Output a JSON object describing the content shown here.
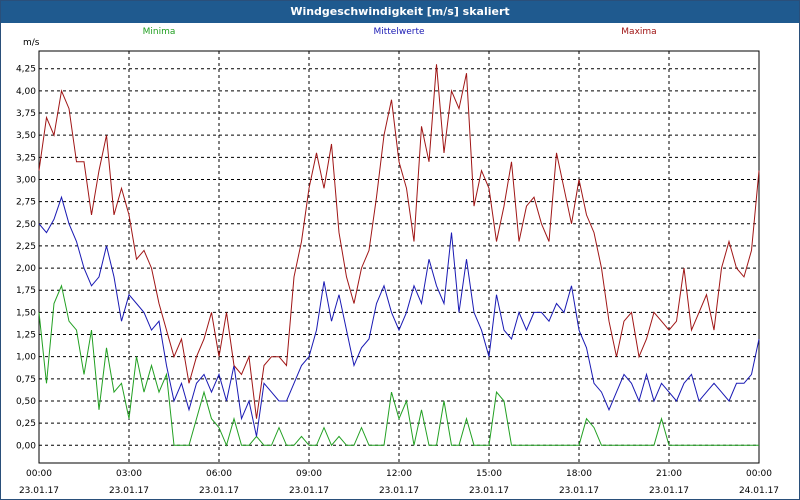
{
  "window": {
    "title": "Windgeschwindigkeit [m/s] skaliert"
  },
  "chart_data": {
    "type": "line",
    "title": "Windgeschwindigkeit [m/s] skaliert",
    "ylabel": "m/s",
    "xlabel": "",
    "ylim": [
      -0.2,
      4.45
    ],
    "xlim": [
      0,
      24
    ],
    "yticks": [
      0,
      0.25,
      0.5,
      0.75,
      1.0,
      1.25,
      1.5,
      1.75,
      2.0,
      2.25,
      2.5,
      2.75,
      3.0,
      3.25,
      3.5,
      3.75,
      4.0,
      4.25
    ],
    "ytick_labels": [
      "0,00",
      "0,25",
      "0,50",
      "0,75",
      "1,00",
      "1,25",
      "1,50",
      "1,75",
      "2,00",
      "2,25",
      "2,50",
      "2,75",
      "3,00",
      "3,25",
      "3,50",
      "3,75",
      "4,00",
      "4,25"
    ],
    "xticks": [
      {
        "x": 0,
        "time": "00:00",
        "date": "23.01.17"
      },
      {
        "x": 3,
        "time": "03:00",
        "date": "23.01.17"
      },
      {
        "x": 6,
        "time": "06:00",
        "date": "23.01.17"
      },
      {
        "x": 9,
        "time": "09:00",
        "date": "23.01.17"
      },
      {
        "x": 12,
        "time": "12:00",
        "date": "23.01.17"
      },
      {
        "x": 15,
        "time": "15:00",
        "date": "23.01.17"
      },
      {
        "x": 18,
        "time": "18:00",
        "date": "23.01.17"
      },
      {
        "x": 21,
        "time": "21:00",
        "date": "23.01.17"
      },
      {
        "x": 24,
        "time": "00:00",
        "date": "24.01.17"
      }
    ],
    "grid": true,
    "series": [
      {
        "name": "Minima",
        "color": "#22a022",
        "legend_pos": "left",
        "x": [
          0,
          0.25,
          0.5,
          0.75,
          1,
          1.25,
          1.5,
          1.75,
          2,
          2.25,
          2.5,
          2.75,
          3,
          3.25,
          3.5,
          3.75,
          4,
          4.25,
          4.5,
          4.75,
          5,
          5.25,
          5.5,
          5.75,
          6,
          6.25,
          6.5,
          6.75,
          7,
          7.25,
          7.5,
          7.75,
          8,
          8.25,
          8.5,
          8.75,
          9,
          9.25,
          9.5,
          9.75,
          10,
          10.25,
          10.5,
          10.75,
          11,
          11.25,
          11.5,
          11.75,
          12,
          12.25,
          12.5,
          12.75,
          13,
          13.25,
          13.5,
          13.75,
          14,
          14.25,
          14.5,
          14.75,
          15,
          15.25,
          15.5,
          15.75,
          16,
          16.25,
          16.5,
          16.75,
          17,
          17.25,
          17.5,
          17.75,
          18,
          18.25,
          18.5,
          18.75,
          19,
          19.25,
          19.5,
          19.75,
          20,
          20.25,
          20.5,
          20.75,
          21,
          21.25,
          21.5,
          21.75,
          22,
          22.25,
          22.5,
          22.75,
          23,
          23.25,
          23.5,
          23.75,
          24
        ],
        "values": [
          1.5,
          0.7,
          1.6,
          1.8,
          1.4,
          1.3,
          0.8,
          1.3,
          0.4,
          1.1,
          0.6,
          0.7,
          0.3,
          1.0,
          0.6,
          0.9,
          0.6,
          0.8,
          0.0,
          0.0,
          0.0,
          0.3,
          0.6,
          0.3,
          0.2,
          0.0,
          0.3,
          0.0,
          0.0,
          0.1,
          0.0,
          0.0,
          0.2,
          0.0,
          0.0,
          0.1,
          0.0,
          0.0,
          0.2,
          0.0,
          0.1,
          0.0,
          0.0,
          0.2,
          0.0,
          0.0,
          0.0,
          0.6,
          0.3,
          0.5,
          0.0,
          0.4,
          0.0,
          0.0,
          0.5,
          0.0,
          0.0,
          0.3,
          0.0,
          0.0,
          0.0,
          0.6,
          0.5,
          0.0,
          0.0,
          0.0,
          0.0,
          0.0,
          0.0,
          0.0,
          0.0,
          0.0,
          0.0,
          0.3,
          0.2,
          0.0,
          0.0,
          0.0,
          0.0,
          0.0,
          0.0,
          0.0,
          0.0,
          0.3,
          0.0,
          0.0,
          0.0,
          0.0,
          0.0,
          0.0,
          0.0,
          0.0,
          0.0,
          0.0,
          0.0,
          0.0,
          0.0
        ]
      },
      {
        "name": "Mittelwerte",
        "color": "#1a1ab4",
        "legend_pos": "center",
        "x": [
          0,
          0.25,
          0.5,
          0.75,
          1,
          1.25,
          1.5,
          1.75,
          2,
          2.25,
          2.5,
          2.75,
          3,
          3.25,
          3.5,
          3.75,
          4,
          4.25,
          4.5,
          4.75,
          5,
          5.25,
          5.5,
          5.75,
          6,
          6.25,
          6.5,
          6.75,
          7,
          7.25,
          7.5,
          7.75,
          8,
          8.25,
          8.5,
          8.75,
          9,
          9.25,
          9.5,
          9.75,
          10,
          10.25,
          10.5,
          10.75,
          11,
          11.25,
          11.5,
          11.75,
          12,
          12.25,
          12.5,
          12.75,
          13,
          13.25,
          13.5,
          13.75,
          14,
          14.25,
          14.5,
          14.75,
          15,
          15.25,
          15.5,
          15.75,
          16,
          16.25,
          16.5,
          16.75,
          17,
          17.25,
          17.5,
          17.75,
          18,
          18.25,
          18.5,
          18.75,
          19,
          19.25,
          19.5,
          19.75,
          20,
          20.25,
          20.5,
          20.75,
          21,
          21.25,
          21.5,
          21.75,
          22,
          22.25,
          22.5,
          22.75,
          23,
          23.25,
          23.5,
          23.75,
          24
        ],
        "values": [
          2.5,
          2.4,
          2.55,
          2.8,
          2.5,
          2.3,
          2.0,
          1.8,
          1.9,
          2.25,
          1.9,
          1.4,
          1.7,
          1.6,
          1.5,
          1.3,
          1.4,
          0.9,
          0.5,
          0.7,
          0.4,
          0.7,
          0.8,
          0.6,
          0.8,
          0.5,
          0.9,
          0.3,
          0.5,
          0.1,
          0.7,
          0.6,
          0.5,
          0.5,
          0.7,
          0.9,
          1.0,
          1.3,
          1.85,
          1.4,
          1.7,
          1.3,
          0.9,
          1.1,
          1.2,
          1.6,
          1.8,
          1.5,
          1.3,
          1.5,
          1.8,
          1.6,
          2.1,
          1.8,
          1.6,
          2.4,
          1.5,
          2.1,
          1.5,
          1.3,
          1.0,
          1.7,
          1.3,
          1.2,
          1.5,
          1.3,
          1.5,
          1.5,
          1.4,
          1.6,
          1.5,
          1.8,
          1.3,
          1.1,
          0.7,
          0.6,
          0.4,
          0.6,
          0.8,
          0.7,
          0.5,
          0.8,
          0.5,
          0.7,
          0.6,
          0.5,
          0.7,
          0.8,
          0.5,
          0.6,
          0.7,
          0.6,
          0.5,
          0.7,
          0.7,
          0.8,
          1.2
        ]
      },
      {
        "name": "Maxima",
        "color": "#a01616",
        "legend_pos": "right",
        "x": [
          0,
          0.25,
          0.5,
          0.75,
          1,
          1.25,
          1.5,
          1.75,
          2,
          2.25,
          2.5,
          2.75,
          3,
          3.25,
          3.5,
          3.75,
          4,
          4.25,
          4.5,
          4.75,
          5,
          5.25,
          5.5,
          5.75,
          6,
          6.25,
          6.5,
          6.75,
          7,
          7.25,
          7.5,
          7.75,
          8,
          8.25,
          8.5,
          8.75,
          9,
          9.25,
          9.5,
          9.75,
          10,
          10.25,
          10.5,
          10.75,
          11,
          11.25,
          11.5,
          11.75,
          12,
          12.25,
          12.5,
          12.75,
          13,
          13.25,
          13.5,
          13.75,
          14,
          14.25,
          14.5,
          14.75,
          15,
          15.25,
          15.5,
          15.75,
          16,
          16.25,
          16.5,
          16.75,
          17,
          17.25,
          17.5,
          17.75,
          18,
          18.25,
          18.5,
          18.75,
          19,
          19.25,
          19.5,
          19.75,
          20,
          20.25,
          20.5,
          20.75,
          21,
          21.25,
          21.5,
          21.75,
          22,
          22.25,
          22.5,
          22.75,
          23,
          23.25,
          23.5,
          23.75,
          24
        ],
        "values": [
          3.1,
          3.7,
          3.5,
          4.0,
          3.8,
          3.2,
          3.2,
          2.6,
          3.1,
          3.5,
          2.6,
          2.9,
          2.6,
          2.1,
          2.2,
          2.0,
          1.6,
          1.3,
          1.0,
          1.2,
          0.7,
          1.0,
          1.2,
          1.5,
          1.0,
          1.5,
          0.9,
          0.8,
          1.0,
          0.3,
          0.9,
          1.0,
          1.0,
          0.9,
          1.9,
          2.3,
          2.9,
          3.3,
          2.9,
          3.4,
          2.4,
          1.9,
          1.6,
          2.0,
          2.2,
          2.8,
          3.5,
          3.9,
          3.2,
          2.9,
          2.3,
          3.6,
          3.2,
          4.3,
          3.3,
          4.0,
          3.8,
          4.2,
          2.7,
          3.1,
          2.9,
          2.3,
          2.7,
          3.2,
          2.3,
          2.7,
          2.8,
          2.5,
          2.3,
          3.3,
          2.9,
          2.5,
          3.0,
          2.6,
          2.4,
          2.0,
          1.4,
          1.0,
          1.4,
          1.5,
          1.0,
          1.2,
          1.5,
          1.4,
          1.3,
          1.4,
          2.0,
          1.3,
          1.5,
          1.7,
          1.3,
          2.0,
          2.3,
          2.0,
          1.9,
          2.2,
          3.1
        ]
      }
    ]
  }
}
